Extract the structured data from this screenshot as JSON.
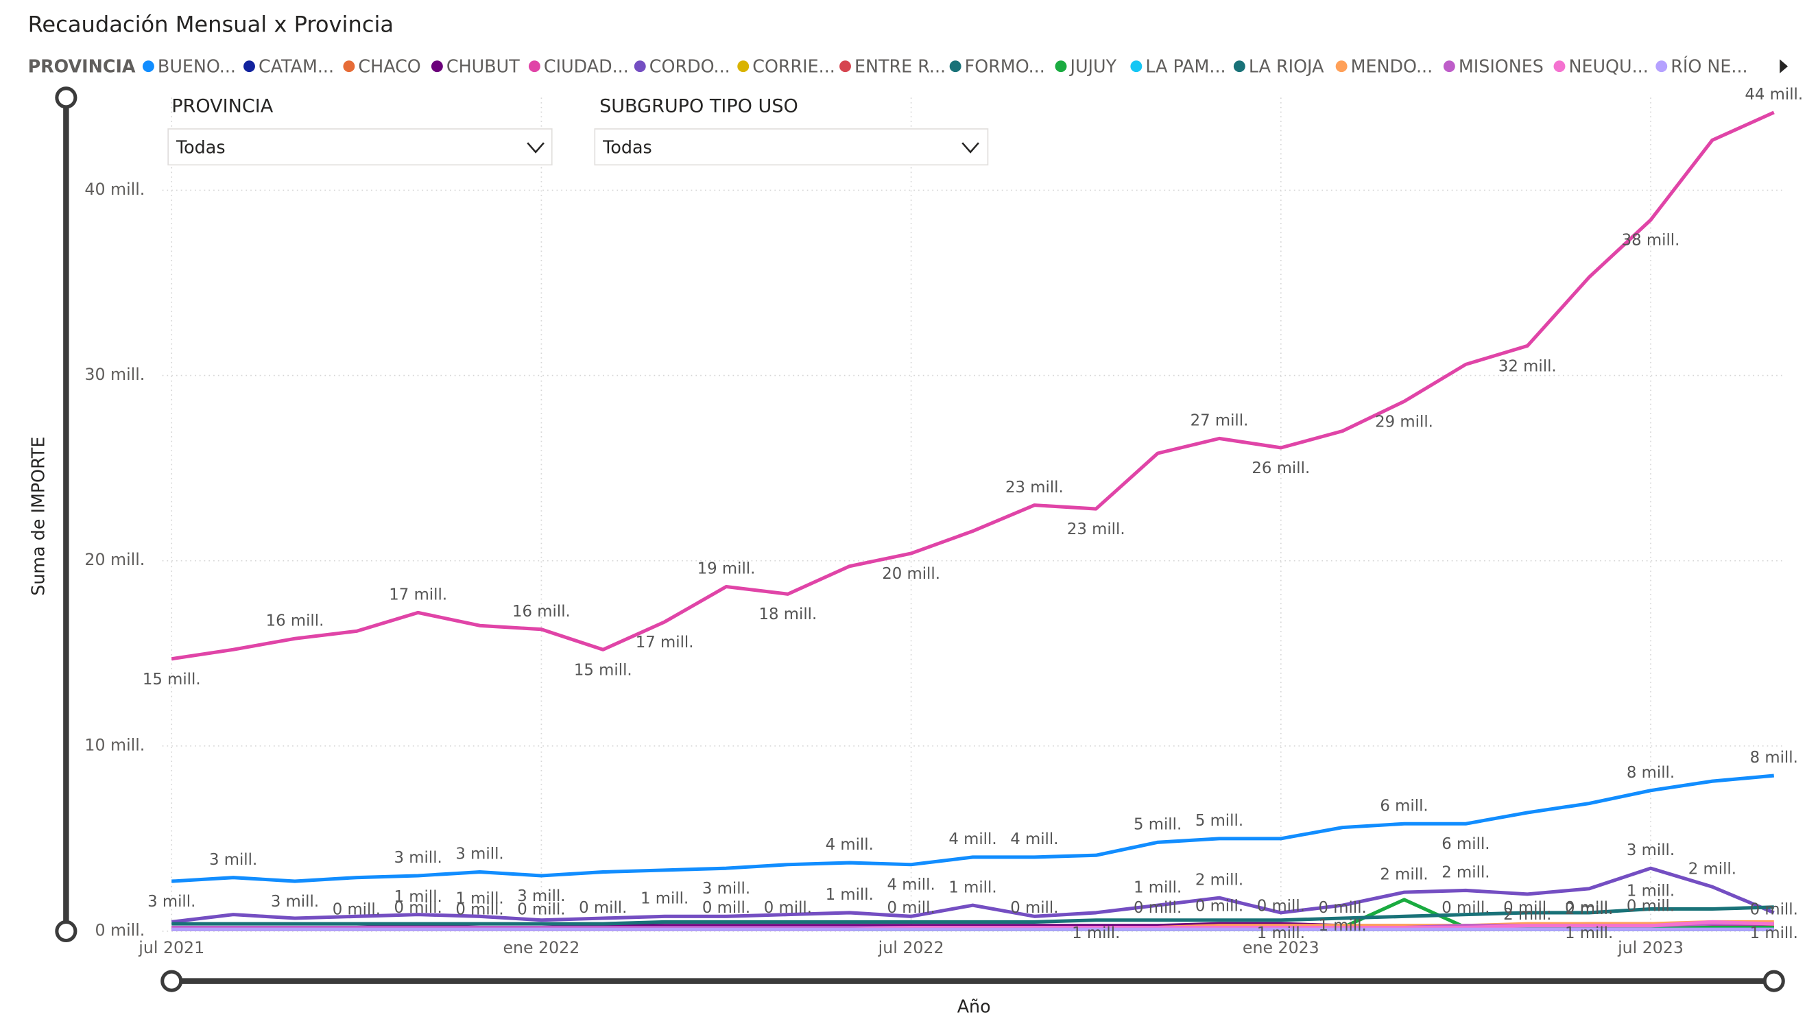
{
  "chart_data": {
    "type": "line",
    "title": "Recaudación Mensual x Provincia",
    "legend_title": "PROVINCIA",
    "filters": [
      {
        "label": "PROVINCIA",
        "value": "Todas"
      },
      {
        "label": "SUBGRUPO TIPO USO",
        "value": "Todas"
      }
    ],
    "y_label": "Suma de IMPORTE",
    "x_label": "Año",
    "categories": [
      "jul 2021",
      null,
      null,
      null,
      null,
      null,
      "ene 2022",
      null,
      null,
      null,
      null,
      null,
      "jul 2022",
      null,
      null,
      null,
      null,
      null,
      "ene 2023",
      null,
      null,
      null,
      null,
      null,
      "jul 2023",
      null,
      null
    ],
    "ylim": [
      0,
      45
    ],
    "yticks": [
      {
        "value": 0,
        "label": "0 mill."
      },
      {
        "value": 10,
        "label": "10 mill."
      },
      {
        "value": 20,
        "label": "20 mill."
      },
      {
        "value": 30,
        "label": "30 mill."
      },
      {
        "value": 40,
        "label": "40 mill."
      }
    ],
    "grid": true,
    "legend": "top",
    "series": [
      {
        "name": "BUENO...",
        "color": "#118dff",
        "values": [
          2.7,
          2.9,
          2.7,
          2.9,
          3.0,
          3.2,
          3.0,
          3.2,
          3.3,
          3.4,
          3.6,
          3.7,
          3.6,
          4.0,
          4.0,
          4.1,
          4.8,
          5.0,
          5.0,
          5.6,
          5.8,
          5.8,
          6.4,
          6.9,
          7.6,
          8.1,
          8.4
        ],
        "value_labels": [
          "3 mill.",
          "3 mill.",
          "3 mill.",
          null,
          "3 mill.",
          "3 mill.",
          "3 mill.",
          null,
          null,
          "3 mill.",
          null,
          "4 mill.",
          "4 mill.",
          "4 mill.",
          "4 mill.",
          null,
          "5 mill.",
          "5 mill.",
          null,
          null,
          "6 mill.",
          "6 mill.",
          null,
          null,
          "8 mill.",
          null,
          "8 mill."
        ]
      },
      {
        "name": "CATAM...",
        "color": "#12239e",
        "values": [
          0.1,
          0.1,
          0.1,
          0.1,
          0.1,
          0.1,
          0.1,
          0.1,
          0.1,
          0.1,
          0.1,
          0.1,
          0.1,
          0.1,
          0.1,
          0.1,
          0.1,
          0.1,
          0.1,
          0.1,
          0.1,
          0.1,
          0.1,
          0.1,
          0.1,
          0.1,
          0.1
        ]
      },
      {
        "name": "CHACO",
        "color": "#e66c37",
        "values": [
          0.1,
          0.1,
          0.1,
          0.1,
          0.1,
          0.1,
          0.1,
          0.1,
          0.1,
          0.1,
          0.1,
          0.2,
          0.2,
          0.2,
          0.2,
          0.2,
          0.2,
          0.2,
          0.2,
          0.2,
          0.2,
          0.2,
          0.2,
          0.3,
          0.3,
          0.3,
          0.3
        ]
      },
      {
        "name": "CHUBUT",
        "color": "#6b007b",
        "values": [
          0.2,
          0.2,
          0.2,
          0.2,
          0.3,
          0.2,
          0.2,
          0.3,
          0.3,
          0.3,
          0.3,
          0.3,
          0.3,
          0.3,
          0.3,
          0.3,
          0.3,
          0.4,
          0.4,
          0.3,
          0.1,
          0.3,
          0.3,
          0.3,
          0.4,
          0.3,
          0.2
        ],
        "value_labels": [
          null,
          null,
          null,
          "0 mill.",
          "0 mill.",
          "0 mill.",
          "0 mill.",
          "0 mill.",
          null,
          "0 mill.",
          "0 mill.",
          null,
          "0 mill.",
          null,
          "0 mill.",
          null,
          "0 mill.",
          "0 mill.",
          "0 mill.",
          "0 mill.",
          null,
          "0 mill.",
          "0 mill.",
          "0 mill.",
          "0 mill.",
          null,
          "0 mill."
        ]
      },
      {
        "name": "CIUDAD...",
        "color": "#e044a7",
        "values": [
          14.7,
          15.2,
          15.8,
          16.2,
          17.2,
          16.5,
          16.3,
          15.2,
          16.7,
          18.6,
          18.2,
          19.7,
          20.4,
          21.6,
          23.0,
          22.8,
          25.8,
          26.6,
          26.1,
          27.0,
          28.6,
          30.6,
          31.6,
          35.3,
          38.4,
          42.7,
          44.2
        ],
        "value_labels": [
          "15 mill.",
          null,
          "16 mill.",
          null,
          "17 mill.",
          null,
          "16 mill.",
          "15 mill.",
          "17 mill.",
          "19 mill.",
          "18 mill.",
          null,
          "20 mill.",
          null,
          "23 mill.",
          "23 mill.",
          null,
          "27 mill.",
          "26 mill.",
          null,
          "29 mill.",
          null,
          "32 mill.",
          null,
          "38 mill.",
          null,
          "44 mill."
        ]
      },
      {
        "name": "CORDO...",
        "color": "#744ec2",
        "values": [
          0.5,
          0.9,
          0.7,
          0.8,
          0.9,
          0.8,
          0.6,
          0.7,
          0.8,
          0.8,
          0.9,
          1.0,
          0.8,
          1.4,
          0.8,
          1.0,
          1.4,
          1.8,
          1.0,
          1.4,
          2.1,
          2.2,
          2.0,
          2.3,
          3.4,
          2.4,
          1.0
        ],
        "value_labels": [
          null,
          null,
          null,
          null,
          "1 mill.",
          "1 mill.",
          null,
          null,
          "1 mill.",
          null,
          null,
          "1 mill.",
          null,
          "1 mill.",
          null,
          "1 mill.",
          "1 mill.",
          "2 mill.",
          "1 mill.",
          "1 mill.",
          "2 mill.",
          "2 mill.",
          "2 mill.",
          "2 mill.",
          "3 mill.",
          "2 mill.",
          "1 mill."
        ]
      },
      {
        "name": "CORRIE...",
        "color": "#d9b300",
        "values": [
          0.1,
          0.1,
          0.1,
          0.1,
          0.1,
          0.1,
          0.1,
          0.1,
          0.1,
          0.1,
          0.1,
          0.1,
          0.1,
          0.1,
          0.1,
          0.1,
          0.1,
          0.1,
          0.1,
          0.1,
          0.1,
          0.1,
          0.1,
          0.2,
          0.2,
          0.2,
          0.2
        ]
      },
      {
        "name": "ENTRE R...",
        "color": "#d64550",
        "values": [
          0.2,
          0.2,
          0.2,
          0.2,
          0.2,
          0.2,
          0.2,
          0.2,
          0.2,
          0.2,
          0.2,
          0.2,
          0.2,
          0.2,
          0.2,
          0.2,
          0.2,
          0.3,
          0.3,
          0.3,
          0.3,
          0.3,
          0.3,
          0.4,
          0.4,
          0.4,
          0.4
        ]
      },
      {
        "name": "FORMO...",
        "color": "#197278",
        "values": [
          0.1,
          0.1,
          0.1,
          0.1,
          0.1,
          0.1,
          0.1,
          0.1,
          0.1,
          0.1,
          0.1,
          0.1,
          0.1,
          0.1,
          0.1,
          0.1,
          0.1,
          0.1,
          0.1,
          0.1,
          0.1,
          0.1,
          0.1,
          0.1,
          0.1,
          0.1,
          0.1
        ]
      },
      {
        "name": "JUJUY",
        "color": "#1aab40",
        "values": [
          0.1,
          0.1,
          0.1,
          0.1,
          0.1,
          0.1,
          0.1,
          0.1,
          0.1,
          0.1,
          0.1,
          0.1,
          0.1,
          0.1,
          0.1,
          0.1,
          0.1,
          0.1,
          0.1,
          0.2,
          1.7,
          0.2,
          0.2,
          0.2,
          0.2,
          0.2,
          0.2
        ]
      },
      {
        "name": "LA PAM...",
        "color": "#15c6f4",
        "values": [
          0.1,
          0.1,
          0.1,
          0.1,
          0.1,
          0.1,
          0.1,
          0.1,
          0.1,
          0.1,
          0.1,
          0.1,
          0.1,
          0.1,
          0.1,
          0.1,
          0.1,
          0.1,
          0.1,
          0.1,
          0.1,
          0.1,
          0.1,
          0.1,
          0.1,
          0.1,
          0.1
        ]
      },
      {
        "name": "LA RIOJA",
        "color": "#197278",
        "values": [
          0.4,
          0.4,
          0.4,
          0.4,
          0.4,
          0.4,
          0.4,
          0.4,
          0.5,
          0.5,
          0.5,
          0.5,
          0.5,
          0.5,
          0.5,
          0.6,
          0.6,
          0.6,
          0.6,
          0.7,
          0.8,
          0.9,
          1.0,
          1.0,
          1.2,
          1.2,
          1.3
        ],
        "value_labels": [
          null,
          null,
          null,
          null,
          null,
          null,
          null,
          null,
          null,
          null,
          null,
          null,
          null,
          null,
          null,
          null,
          null,
          null,
          null,
          null,
          null,
          null,
          null,
          "1 mill.",
          "1 mill.",
          null,
          null
        ]
      },
      {
        "name": "MENDO...",
        "color": "#ffa058",
        "values": [
          0.2,
          0.2,
          0.2,
          0.2,
          0.2,
          0.2,
          0.2,
          0.2,
          0.2,
          0.2,
          0.2,
          0.2,
          0.2,
          0.2,
          0.2,
          0.2,
          0.2,
          0.3,
          0.3,
          0.3,
          0.3,
          0.3,
          0.4,
          0.4,
          0.4,
          0.5,
          0.5
        ]
      },
      {
        "name": "MISIONES",
        "color": "#be5dc9",
        "values": [
          0.2,
          0.2,
          0.2,
          0.2,
          0.2,
          0.2,
          0.2,
          0.2,
          0.2,
          0.2,
          0.2,
          0.2,
          0.2,
          0.2,
          0.2,
          0.2,
          0.2,
          0.2,
          0.2,
          0.2,
          0.2,
          0.3,
          0.3,
          0.3,
          0.3,
          0.4,
          0.4
        ]
      },
      {
        "name": "NEUQU...",
        "color": "#f472d0",
        "values": [
          0.1,
          0.1,
          0.1,
          0.1,
          0.1,
          0.1,
          0.1,
          0.1,
          0.1,
          0.1,
          0.1,
          0.1,
          0.2,
          0.2,
          0.2,
          0.2,
          0.2,
          0.2,
          0.2,
          0.2,
          0.2,
          0.2,
          0.3,
          0.3,
          0.3,
          0.5,
          0.4
        ]
      },
      {
        "name": "RÍO NE...",
        "color": "#b5a1ff",
        "values": [
          0.1,
          0.1,
          0.1,
          0.1,
          0.1,
          0.1,
          0.1,
          0.1,
          0.1,
          0.1,
          0.1,
          0.1,
          0.1,
          0.1,
          0.1,
          0.1,
          0.1,
          0.1,
          0.1,
          0.1,
          0.1,
          0.1,
          0.1,
          0.1,
          0.1,
          0.1,
          0.1
        ]
      }
    ]
  }
}
